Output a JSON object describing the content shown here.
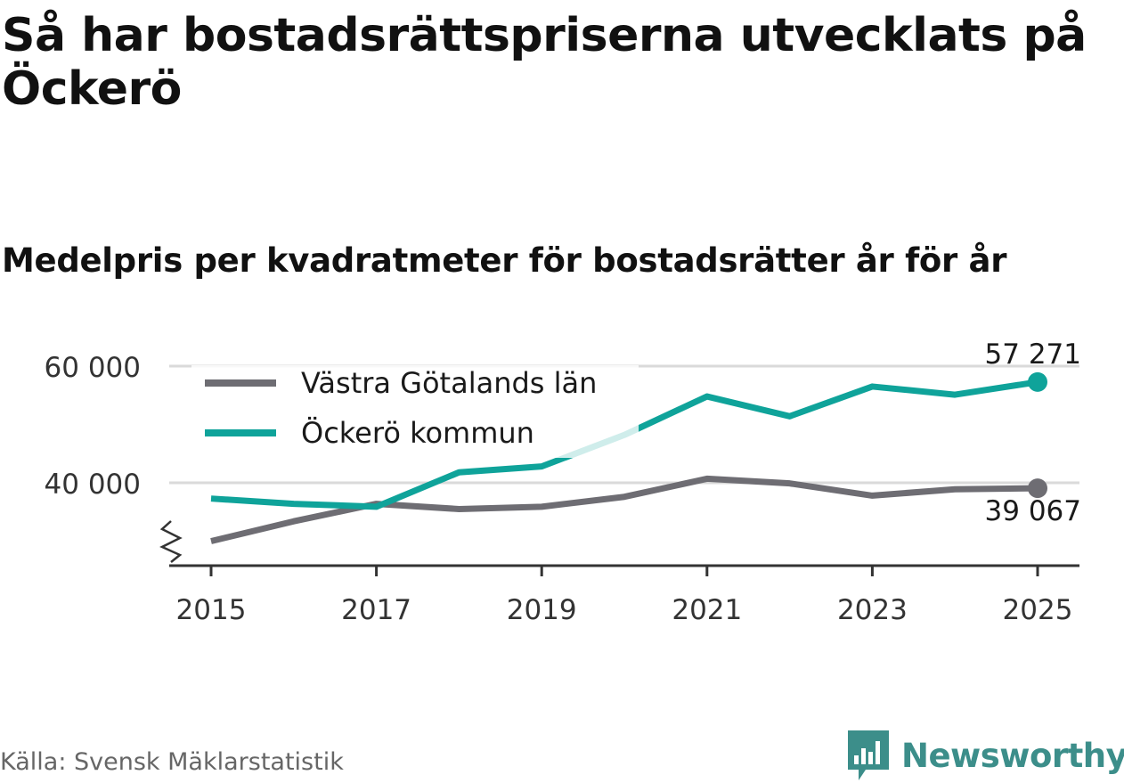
{
  "title": "Så har bostadsrättspriserna utvecklats på Öckerö",
  "subtitle": "Medelpris per kvadratmeter för bostadsrätter år för år",
  "source": "Källa: Svensk Mäklarstatistik",
  "brand": "Newsworthy",
  "chart_data": {
    "type": "line",
    "x": [
      2015,
      2016,
      2017,
      2018,
      2019,
      2020,
      2021,
      2022,
      2023,
      2024,
      2025
    ],
    "x_tick_labels": [
      "2015",
      "2017",
      "2019",
      "2021",
      "2023",
      "2025"
    ],
    "x_ticks": [
      2015,
      2017,
      2019,
      2021,
      2023,
      2025
    ],
    "y_ticks": [
      40000,
      60000
    ],
    "y_tick_labels": [
      "40 000",
      "60 000"
    ],
    "ylim": [
      26000,
      62000
    ],
    "xlim": [
      2014.5,
      2025.5
    ],
    "axis_break": true,
    "series": [
      {
        "name": "Västra Götalands län",
        "color": "#6e6d73",
        "values": [
          30000,
          33400,
          36400,
          35500,
          35900,
          37600,
          40700,
          39900,
          37800,
          38900,
          39067
        ],
        "end_label": "39 067"
      },
      {
        "name": "Öckerö kommun",
        "color": "#0fa39a",
        "values": [
          37300,
          36400,
          35900,
          41800,
          42800,
          48200,
          54800,
          51400,
          56500,
          55100,
          57271
        ],
        "end_label": "57 271"
      }
    ],
    "legend_position": "top-left"
  }
}
